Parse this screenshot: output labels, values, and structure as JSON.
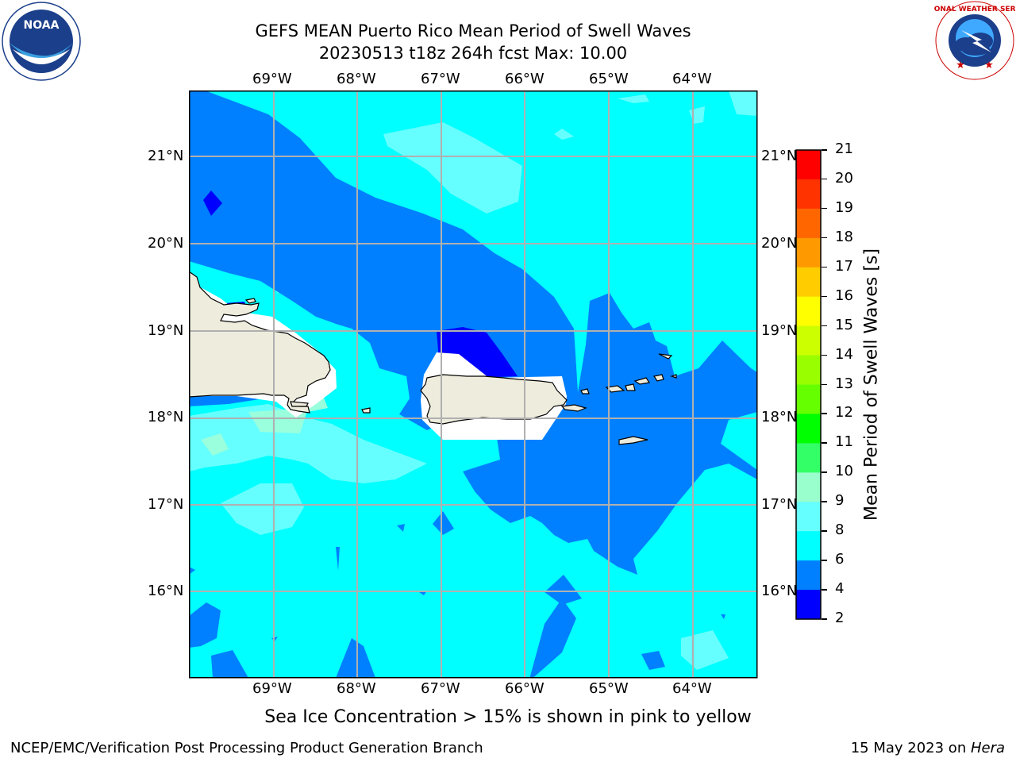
{
  "header": {
    "title_line1": "GEFS MEAN Puerto Rico Mean Period of Swell Waves",
    "title_line2": "20230513 t18z 264h fcst   Max: 10.00"
  },
  "map": {
    "lon_labels": [
      "69°W",
      "68°W",
      "67°W",
      "66°W",
      "65°W",
      "64°W"
    ],
    "lat_labels": [
      "21°N",
      "20°N",
      "19°N",
      "18°N",
      "17°N",
      "16°N"
    ],
    "colors": {
      "land": "#eeecdc",
      "background": "#00ffff",
      "band_4_6": "#0080ff",
      "band_2_4": "#0000ff",
      "band_8_9": "#66ffff",
      "band_9_10": "#99ffdd",
      "grid": "#b0b0b0"
    }
  },
  "colorbar": {
    "label": "Mean Period of Swell Waves [s]",
    "ticks": [
      "21",
      "20",
      "19",
      "18",
      "17",
      "16",
      "15",
      "14",
      "13",
      "12",
      "11",
      "10",
      "9",
      "8",
      "6",
      "4",
      "2"
    ],
    "colors": [
      "#ff0000",
      "#ff3300",
      "#ff6600",
      "#ff9900",
      "#ffcc00",
      "#ffff00",
      "#ccff00",
      "#99ff00",
      "#66ff00",
      "#00ff00",
      "#33ff66",
      "#99ffcc",
      "#66ffff",
      "#00ffff",
      "#0080ff",
      "#0000ff"
    ]
  },
  "caption": "Sea Ice Concentration > 15% is shown in pink to yellow",
  "footer": {
    "left": "NCEP/EMC/Verification Post Processing Product Generation Branch",
    "date": "15 May 2023 on ",
    "machine": "Hera"
  },
  "logos": {
    "noaa": "NOAA",
    "nws": "NATIONAL WEATHER SERVICE"
  }
}
